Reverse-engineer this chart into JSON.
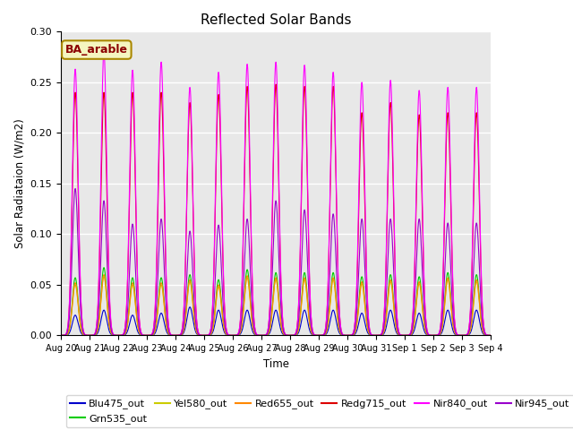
{
  "title": "Reflected Solar Bands",
  "ylabel": "Solar Radiataion (W/m2)",
  "xlabel": "Time",
  "ylim": [
    0,
    0.3
  ],
  "background_color": "#e8e8e8",
  "annotation_text": "BA_arable",
  "annotation_color": "#8B0000",
  "annotation_bg": "#f5f5c0",
  "legend_entries": [
    {
      "label": "Blu475_out",
      "color": "#0000cc"
    },
    {
      "label": "Grn535_out",
      "color": "#00cc00"
    },
    {
      "label": "Yel580_out",
      "color": "#cccc00"
    },
    {
      "label": "Red655_out",
      "color": "#ff8800"
    },
    {
      "label": "Redg715_out",
      "color": "#dd0000"
    },
    {
      "label": "Nir840_out",
      "color": "#ff00ff"
    },
    {
      "label": "Nir945_out",
      "color": "#9900cc"
    }
  ],
  "num_days": 15,
  "daily_peaks": {
    "Blu475_out": [
      0.02,
      0.025,
      0.02,
      0.022,
      0.028,
      0.025,
      0.025,
      0.025,
      0.025,
      0.025,
      0.022,
      0.025,
      0.022,
      0.025,
      0.025
    ],
    "Grn535_out": [
      0.057,
      0.067,
      0.057,
      0.057,
      0.06,
      0.055,
      0.065,
      0.062,
      0.062,
      0.062,
      0.058,
      0.06,
      0.058,
      0.062,
      0.06
    ],
    "Yel580_out": [
      0.05,
      0.058,
      0.05,
      0.05,
      0.053,
      0.048,
      0.057,
      0.055,
      0.055,
      0.055,
      0.051,
      0.053,
      0.051,
      0.055,
      0.053
    ],
    "Red655_out": [
      0.052,
      0.06,
      0.052,
      0.052,
      0.055,
      0.05,
      0.059,
      0.057,
      0.057,
      0.057,
      0.053,
      0.055,
      0.053,
      0.057,
      0.055
    ],
    "Redg715_out": [
      0.24,
      0.24,
      0.24,
      0.24,
      0.23,
      0.238,
      0.246,
      0.248,
      0.246,
      0.246,
      0.22,
      0.23,
      0.218,
      0.22,
      0.22
    ],
    "Nir840_out": [
      0.263,
      0.28,
      0.262,
      0.27,
      0.245,
      0.26,
      0.268,
      0.27,
      0.267,
      0.26,
      0.25,
      0.252,
      0.242,
      0.245,
      0.245
    ],
    "Nir945_out": [
      0.145,
      0.133,
      0.11,
      0.115,
      0.103,
      0.109,
      0.115,
      0.133,
      0.124,
      0.12,
      0.115,
      0.115,
      0.115,
      0.111,
      0.111
    ]
  },
  "tick_labels": [
    "Aug 20",
    "Aug 21",
    "Aug 22",
    "Aug 23",
    "Aug 24",
    "Aug 25",
    "Aug 26",
    "Aug 27",
    "Aug 28",
    "Aug 29",
    "Aug 30",
    "Aug 31",
    "Sep 1",
    "Sep 2",
    "Sep 3",
    "Sep 4"
  ]
}
